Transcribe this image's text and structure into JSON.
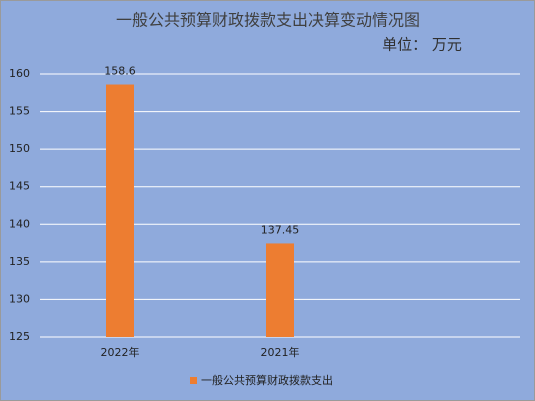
{
  "chart_data": {
    "type": "bar",
    "title": "一般公共预算财政拨款支出决算变动情况图",
    "subtitle": "单位：  万元",
    "categories": [
      "2022年",
      "2021年",
      null
    ],
    "series": [
      {
        "name": "一般公共预算财政拨款支出",
        "color": "#ed7d31",
        "values": [
          158.6,
          137.45,
          null
        ]
      }
    ],
    "ylim": [
      125,
      160
    ],
    "yticks": [
      125,
      130,
      135,
      140,
      145,
      150,
      155,
      160
    ],
    "grid": true,
    "legend": "bottom",
    "data_labels": true
  }
}
